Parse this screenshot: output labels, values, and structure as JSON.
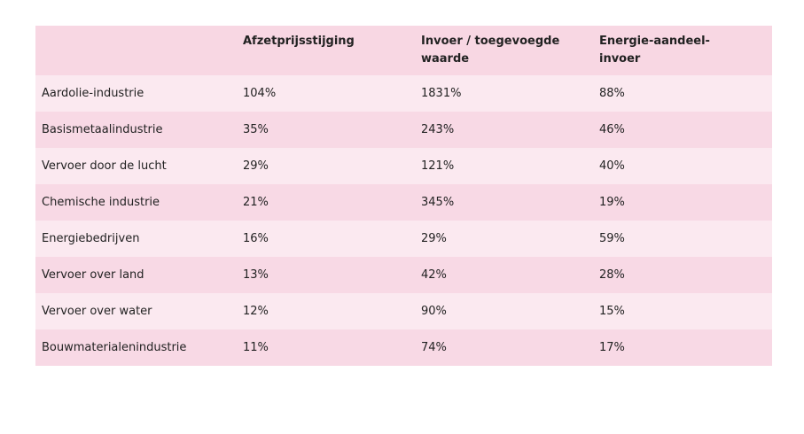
{
  "table": {
    "headers": [
      "Afzetprijsstijging",
      "Invoer / toegevoegde waarde",
      "Energie-aandeel-invoer"
    ],
    "rows": [
      [
        "Aardolie-industrie",
        "104%",
        "1831%",
        "88%"
      ],
      [
        "Basismetaalindustrie",
        "35%",
        "243%",
        "46%"
      ],
      [
        "Vervoer door de lucht",
        "29%",
        "121%",
        "40%"
      ],
      [
        "Chemische industrie",
        "21%",
        "345%",
        "19%"
      ],
      [
        "Energiebedrijven",
        "16%",
        "29%",
        "59%"
      ],
      [
        "Vervoer over land",
        "13%",
        "42%",
        "28%"
      ],
      [
        "Vervoer over water",
        "12%",
        "90%",
        "15%"
      ],
      [
        "Bouwmaterialenindustrie",
        "11%",
        "74%",
        "17%"
      ]
    ]
  }
}
